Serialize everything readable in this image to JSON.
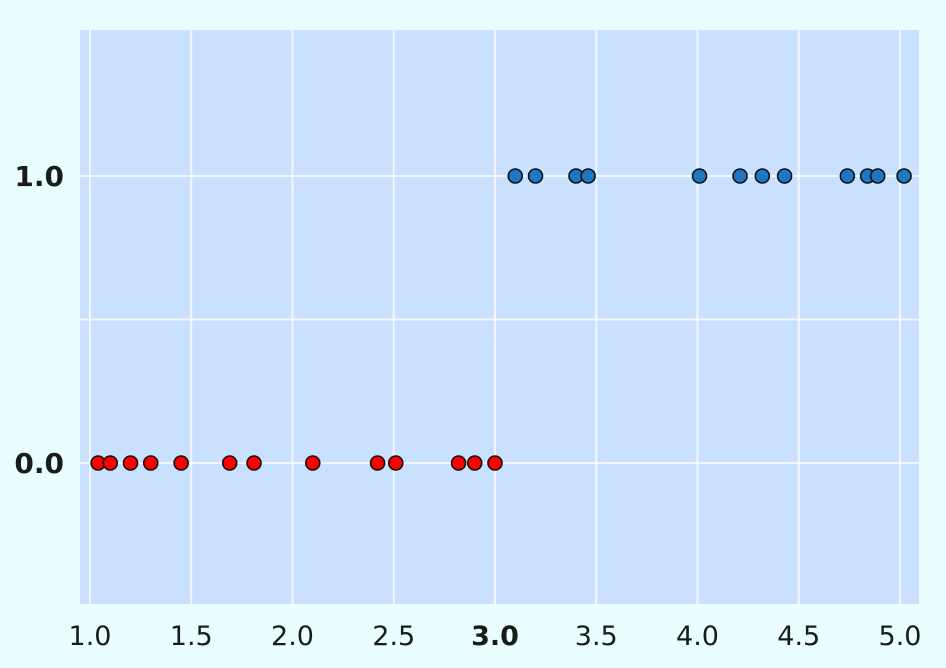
{
  "chart_data": {
    "type": "scatter",
    "title": "",
    "xlabel": "",
    "ylabel": "",
    "xlim": [
      1.0,
      5.0
    ],
    "ylim": [
      -0.5,
      1.5
    ],
    "x_ticks": [
      1.0,
      1.5,
      2.0,
      2.5,
      3.0,
      3.5,
      4.0,
      4.5,
      5.0
    ],
    "x_tick_labels": [
      "1.0",
      "1.5",
      "2.0",
      "2.5",
      "3.0",
      "3.5",
      "4.0",
      "4.5",
      "5.0"
    ],
    "y_ticks": [
      0.0,
      1.0
    ],
    "y_tick_labels": [
      "0.0",
      "1.0"
    ],
    "grid": true,
    "background_color": "#c9e0ff",
    "series": [
      {
        "color": "#ff0000",
        "points": [
          {
            "x": 1.04,
            "y": 0.0
          },
          {
            "x": 1.1,
            "y": 0.0
          },
          {
            "x": 1.2,
            "y": 0.0
          },
          {
            "x": 1.3,
            "y": 0.0
          },
          {
            "x": 1.45,
            "y": 0.0
          },
          {
            "x": 1.69,
            "y": 0.0
          },
          {
            "x": 1.81,
            "y": 0.0
          },
          {
            "x": 2.1,
            "y": 0.0
          },
          {
            "x": 2.42,
            "y": 0.0
          },
          {
            "x": 2.51,
            "y": 0.0
          },
          {
            "x": 2.82,
            "y": 0.0
          },
          {
            "x": 2.9,
            "y": 0.0
          },
          {
            "x": 3.0,
            "y": 0.0
          }
        ]
      },
      {
        "color": "#1f77c4",
        "points": [
          {
            "x": 3.1,
            "y": 1.0
          },
          {
            "x": 3.2,
            "y": 1.0
          },
          {
            "x": 3.4,
            "y": 1.0
          },
          {
            "x": 3.46,
            "y": 1.0
          },
          {
            "x": 4.01,
            "y": 1.0
          },
          {
            "x": 4.21,
            "y": 1.0
          },
          {
            "x": 4.32,
            "y": 1.0
          },
          {
            "x": 4.43,
            "y": 1.0
          },
          {
            "x": 4.74,
            "y": 1.0
          },
          {
            "x": 4.84,
            "y": 1.0
          },
          {
            "x": 4.89,
            "y": 1.0
          },
          {
            "x": 5.02,
            "y": 1.0
          }
        ]
      }
    ]
  }
}
